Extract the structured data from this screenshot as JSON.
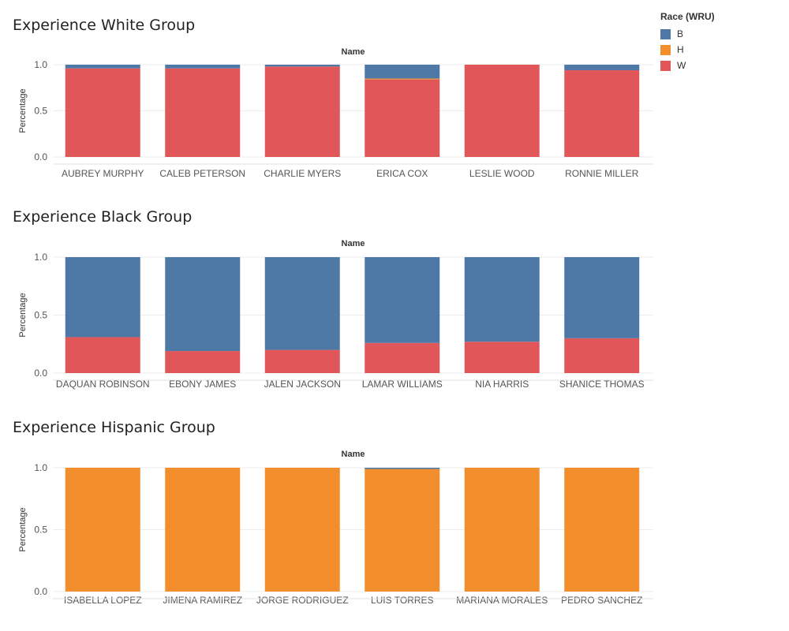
{
  "legend": {
    "title": "Race (WRU)",
    "items": [
      {
        "label": "B",
        "color": "#4e79a7"
      },
      {
        "label": "H",
        "color": "#f28e2b"
      },
      {
        "label": "W",
        "color": "#e15759"
      }
    ]
  },
  "chart_data": [
    {
      "type": "bar",
      "stacked": true,
      "title": "Experience White Group",
      "header": "Name",
      "ylabel": "Percentage",
      "ylim": [
        0,
        1
      ],
      "yticks": [
        "0.0",
        "0.5",
        "1.0"
      ],
      "categories": [
        "AUBREY MURPHY",
        "CALEB PETERSON",
        "CHARLIE MYERS",
        "ERICA COX",
        "LESLIE WOOD",
        "RONNIE MILLER"
      ],
      "series": [
        {
          "name": "W",
          "values": [
            0.96,
            0.96,
            0.98,
            0.84,
            1.0,
            0.94
          ]
        },
        {
          "name": "H",
          "values": [
            0.0,
            0.0,
            0.0,
            0.01,
            0.0,
            0.0
          ]
        },
        {
          "name": "B",
          "values": [
            0.04,
            0.04,
            0.02,
            0.15,
            0.0,
            0.06
          ]
        }
      ]
    },
    {
      "type": "bar",
      "stacked": true,
      "title": "Experience Black Group",
      "header": "Name",
      "ylabel": "Percentage",
      "ylim": [
        0,
        1
      ],
      "yticks": [
        "0.0",
        "0.5",
        "1.0"
      ],
      "categories": [
        "DAQUAN ROBINSON",
        "EBONY JAMES",
        "JALEN JACKSON",
        "LAMAR WILLIAMS",
        "NIA HARRIS",
        "SHANICE THOMAS"
      ],
      "series": [
        {
          "name": "W",
          "values": [
            0.31,
            0.19,
            0.2,
            0.26,
            0.27,
            0.3
          ]
        },
        {
          "name": "H",
          "values": [
            0.0,
            0.0,
            0.0,
            0.0,
            0.0,
            0.0
          ]
        },
        {
          "name": "B",
          "values": [
            0.69,
            0.81,
            0.8,
            0.74,
            0.73,
            0.7
          ]
        }
      ]
    },
    {
      "type": "bar",
      "stacked": true,
      "title": "Experience Hispanic Group",
      "header": "Name",
      "ylabel": "Percentage",
      "ylim": [
        0,
        1
      ],
      "yticks": [
        "0.0",
        "0.5",
        "1.0"
      ],
      "categories": [
        "ISABELLA LOPEZ",
        "JIMENA RAMIREZ",
        "JORGE RODRIGUEZ",
        "LUIS TORRES",
        "MARIANA MORALES",
        "PEDRO SANCHEZ"
      ],
      "series": [
        {
          "name": "W",
          "values": [
            0.0,
            0.0,
            0.0,
            0.0,
            0.0,
            0.0
          ]
        },
        {
          "name": "H",
          "values": [
            1.0,
            1.0,
            1.0,
            0.99,
            1.0,
            1.0
          ]
        },
        {
          "name": "B",
          "values": [
            0.0,
            0.0,
            0.0,
            0.01,
            0.0,
            0.0
          ]
        }
      ]
    }
  ]
}
